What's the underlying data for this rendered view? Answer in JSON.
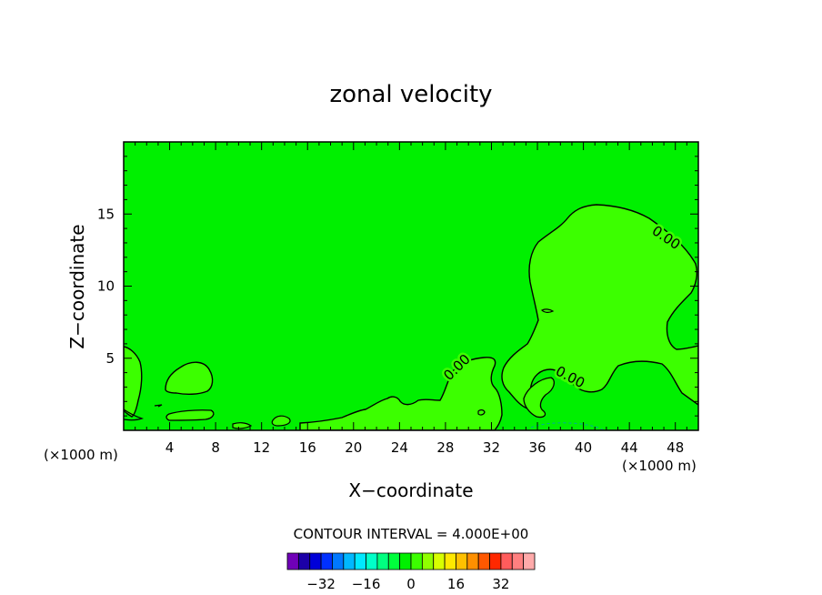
{
  "chart_data": {
    "type": "contour",
    "title": "zonal velocity",
    "xlabel": "X−coordinate",
    "ylabel": "Z−coordinate",
    "x_unit_left": "(×1000 m)",
    "x_unit_right": "(×1000 m)",
    "xlim": [
      0,
      50
    ],
    "ylim": [
      0,
      20
    ],
    "x_ticks": [
      4,
      8,
      12,
      16,
      20,
      24,
      28,
      32,
      36,
      40,
      44,
      48
    ],
    "y_ticks": [
      5,
      10,
      15
    ],
    "field_color": "#00f000",
    "positive_region_color": "#3cff00",
    "contour_labels": [
      "0.00",
      "0.00",
      "0.00"
    ],
    "contour_interval_text": "CONTOUR INTERVAL = 4.000E+00",
    "colorbar": {
      "colors": [
        "#7000b8",
        "#1c00a8",
        "#0000d8",
        "#0030ff",
        "#0078ff",
        "#00b8ff",
        "#00e8ff",
        "#00ffc8",
        "#00ff80",
        "#00ff3c",
        "#00f000",
        "#3cff00",
        "#90ff00",
        "#d8ff00",
        "#ffe800",
        "#ffc000",
        "#ff9000",
        "#ff5800",
        "#ff2800",
        "#ff5c5c",
        "#ff8080",
        "#ffaaaa"
      ],
      "tick_labels": [
        "−32",
        "−16",
        "0",
        "16",
        "32"
      ],
      "tick_values": [
        -32,
        -16,
        0,
        16,
        32
      ],
      "range": [
        -44,
        44
      ]
    }
  }
}
